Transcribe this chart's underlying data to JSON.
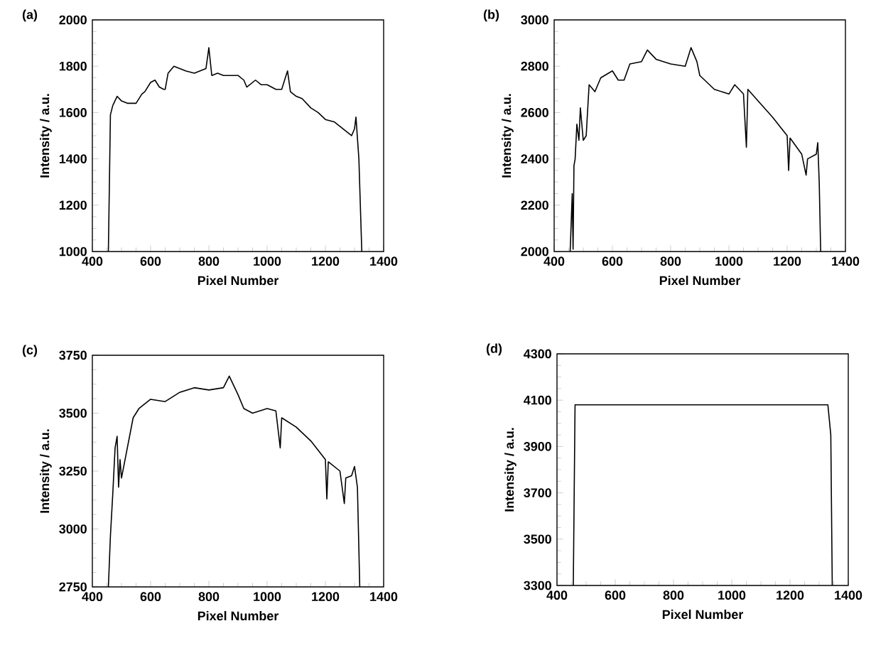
{
  "chart_data": [
    {
      "type": "line",
      "title": "(a)",
      "xlabel": "Pixel Number",
      "ylabel": "Intensity / a.u.",
      "color": "#000000",
      "xlim": [
        400,
        1400
      ],
      "ylim": [
        1000,
        2000
      ],
      "xticks": [
        400,
        600,
        800,
        1000,
        1200,
        1400
      ],
      "yticks": [
        1000,
        1200,
        1400,
        1600,
        1800,
        2000
      ],
      "x": [
        455,
        462,
        470,
        485,
        500,
        520,
        550,
        570,
        580,
        600,
        615,
        630,
        645,
        650,
        660,
        680,
        700,
        720,
        750,
        770,
        790,
        800,
        810,
        830,
        850,
        880,
        900,
        920,
        930,
        960,
        980,
        1000,
        1030,
        1050,
        1070,
        1080,
        1100,
        1120,
        1150,
        1175,
        1200,
        1230,
        1250,
        1270,
        1280,
        1290,
        1300,
        1305,
        1315,
        1325
      ],
      "values": [
        1000,
        1590,
        1630,
        1670,
        1650,
        1640,
        1640,
        1680,
        1690,
        1730,
        1740,
        1710,
        1700,
        1700,
        1770,
        1800,
        1790,
        1780,
        1770,
        1780,
        1790,
        1880,
        1760,
        1770,
        1760,
        1760,
        1760,
        1740,
        1710,
        1740,
        1720,
        1720,
        1700,
        1700,
        1780,
        1690,
        1670,
        1660,
        1620,
        1600,
        1570,
        1560,
        1540,
        1520,
        1510,
        1500,
        1530,
        1580,
        1400,
        1000
      ]
    },
    {
      "type": "line",
      "title": "(b)",
      "xlabel": "Pixel Number",
      "ylabel": "Intensity / a.u.",
      "color": "#000000",
      "xlim": [
        400,
        1400
      ],
      "ylim": [
        2000,
        3000
      ],
      "xticks": [
        400,
        600,
        800,
        1000,
        1200,
        1400
      ],
      "yticks": [
        2000,
        2200,
        2400,
        2600,
        2800,
        3000
      ],
      "x": [
        455,
        462,
        465,
        468,
        472,
        478,
        485,
        490,
        500,
        510,
        520,
        540,
        560,
        600,
        620,
        640,
        660,
        700,
        720,
        750,
        800,
        850,
        870,
        890,
        900,
        950,
        1000,
        1020,
        1050,
        1060,
        1065,
        1100,
        1150,
        1200,
        1205,
        1210,
        1250,
        1265,
        1270,
        1300,
        1305,
        1310,
        1315
      ],
      "values": [
        2000,
        2250,
        2010,
        2370,
        2400,
        2550,
        2480,
        2620,
        2480,
        2500,
        2720,
        2690,
        2750,
        2780,
        2740,
        2740,
        2810,
        2820,
        2870,
        2830,
        2810,
        2800,
        2880,
        2820,
        2760,
        2700,
        2680,
        2720,
        2680,
        2450,
        2700,
        2650,
        2580,
        2500,
        2350,
        2490,
        2420,
        2330,
        2400,
        2420,
        2470,
        2300,
        2000
      ]
    },
    {
      "type": "line",
      "title": "(c)",
      "xlabel": "Pixel Number",
      "ylabel": "Intensity / a.u.",
      "color": "#000000",
      "xlim": [
        400,
        1400
      ],
      "ylim": [
        2750,
        3750
      ],
      "xticks": [
        400,
        600,
        800,
        1000,
        1200,
        1400
      ],
      "yticks": [
        2750,
        3000,
        3250,
        3500,
        3750
      ],
      "x": [
        455,
        462,
        470,
        478,
        485,
        490,
        495,
        500,
        520,
        540,
        560,
        600,
        650,
        700,
        750,
        800,
        850,
        870,
        900,
        920,
        950,
        1000,
        1030,
        1045,
        1050,
        1100,
        1150,
        1200,
        1205,
        1210,
        1250,
        1265,
        1270,
        1290,
        1300,
        1310,
        1318
      ],
      "values": [
        2750,
        2970,
        3150,
        3350,
        3400,
        3180,
        3300,
        3220,
        3350,
        3480,
        3520,
        3560,
        3550,
        3590,
        3610,
        3600,
        3610,
        3660,
        3580,
        3520,
        3500,
        3520,
        3510,
        3350,
        3480,
        3440,
        3380,
        3300,
        3130,
        3290,
        3250,
        3110,
        3220,
        3230,
        3270,
        3180,
        2750
      ]
    },
    {
      "type": "line",
      "title": "(d)",
      "xlabel": "Pixel Number",
      "ylabel": "Intensity / a.u.",
      "color": "#000000",
      "xlim": [
        400,
        1400
      ],
      "ylim": [
        3300,
        4300
      ],
      "xticks": [
        400,
        600,
        800,
        1000,
        1200,
        1400
      ],
      "yticks": [
        3300,
        3500,
        3700,
        3900,
        4100,
        4300
      ],
      "x": [
        456,
        462,
        1330,
        1340,
        1345
      ],
      "values": [
        3300,
        4080,
        4080,
        3950,
        3300
      ]
    }
  ]
}
